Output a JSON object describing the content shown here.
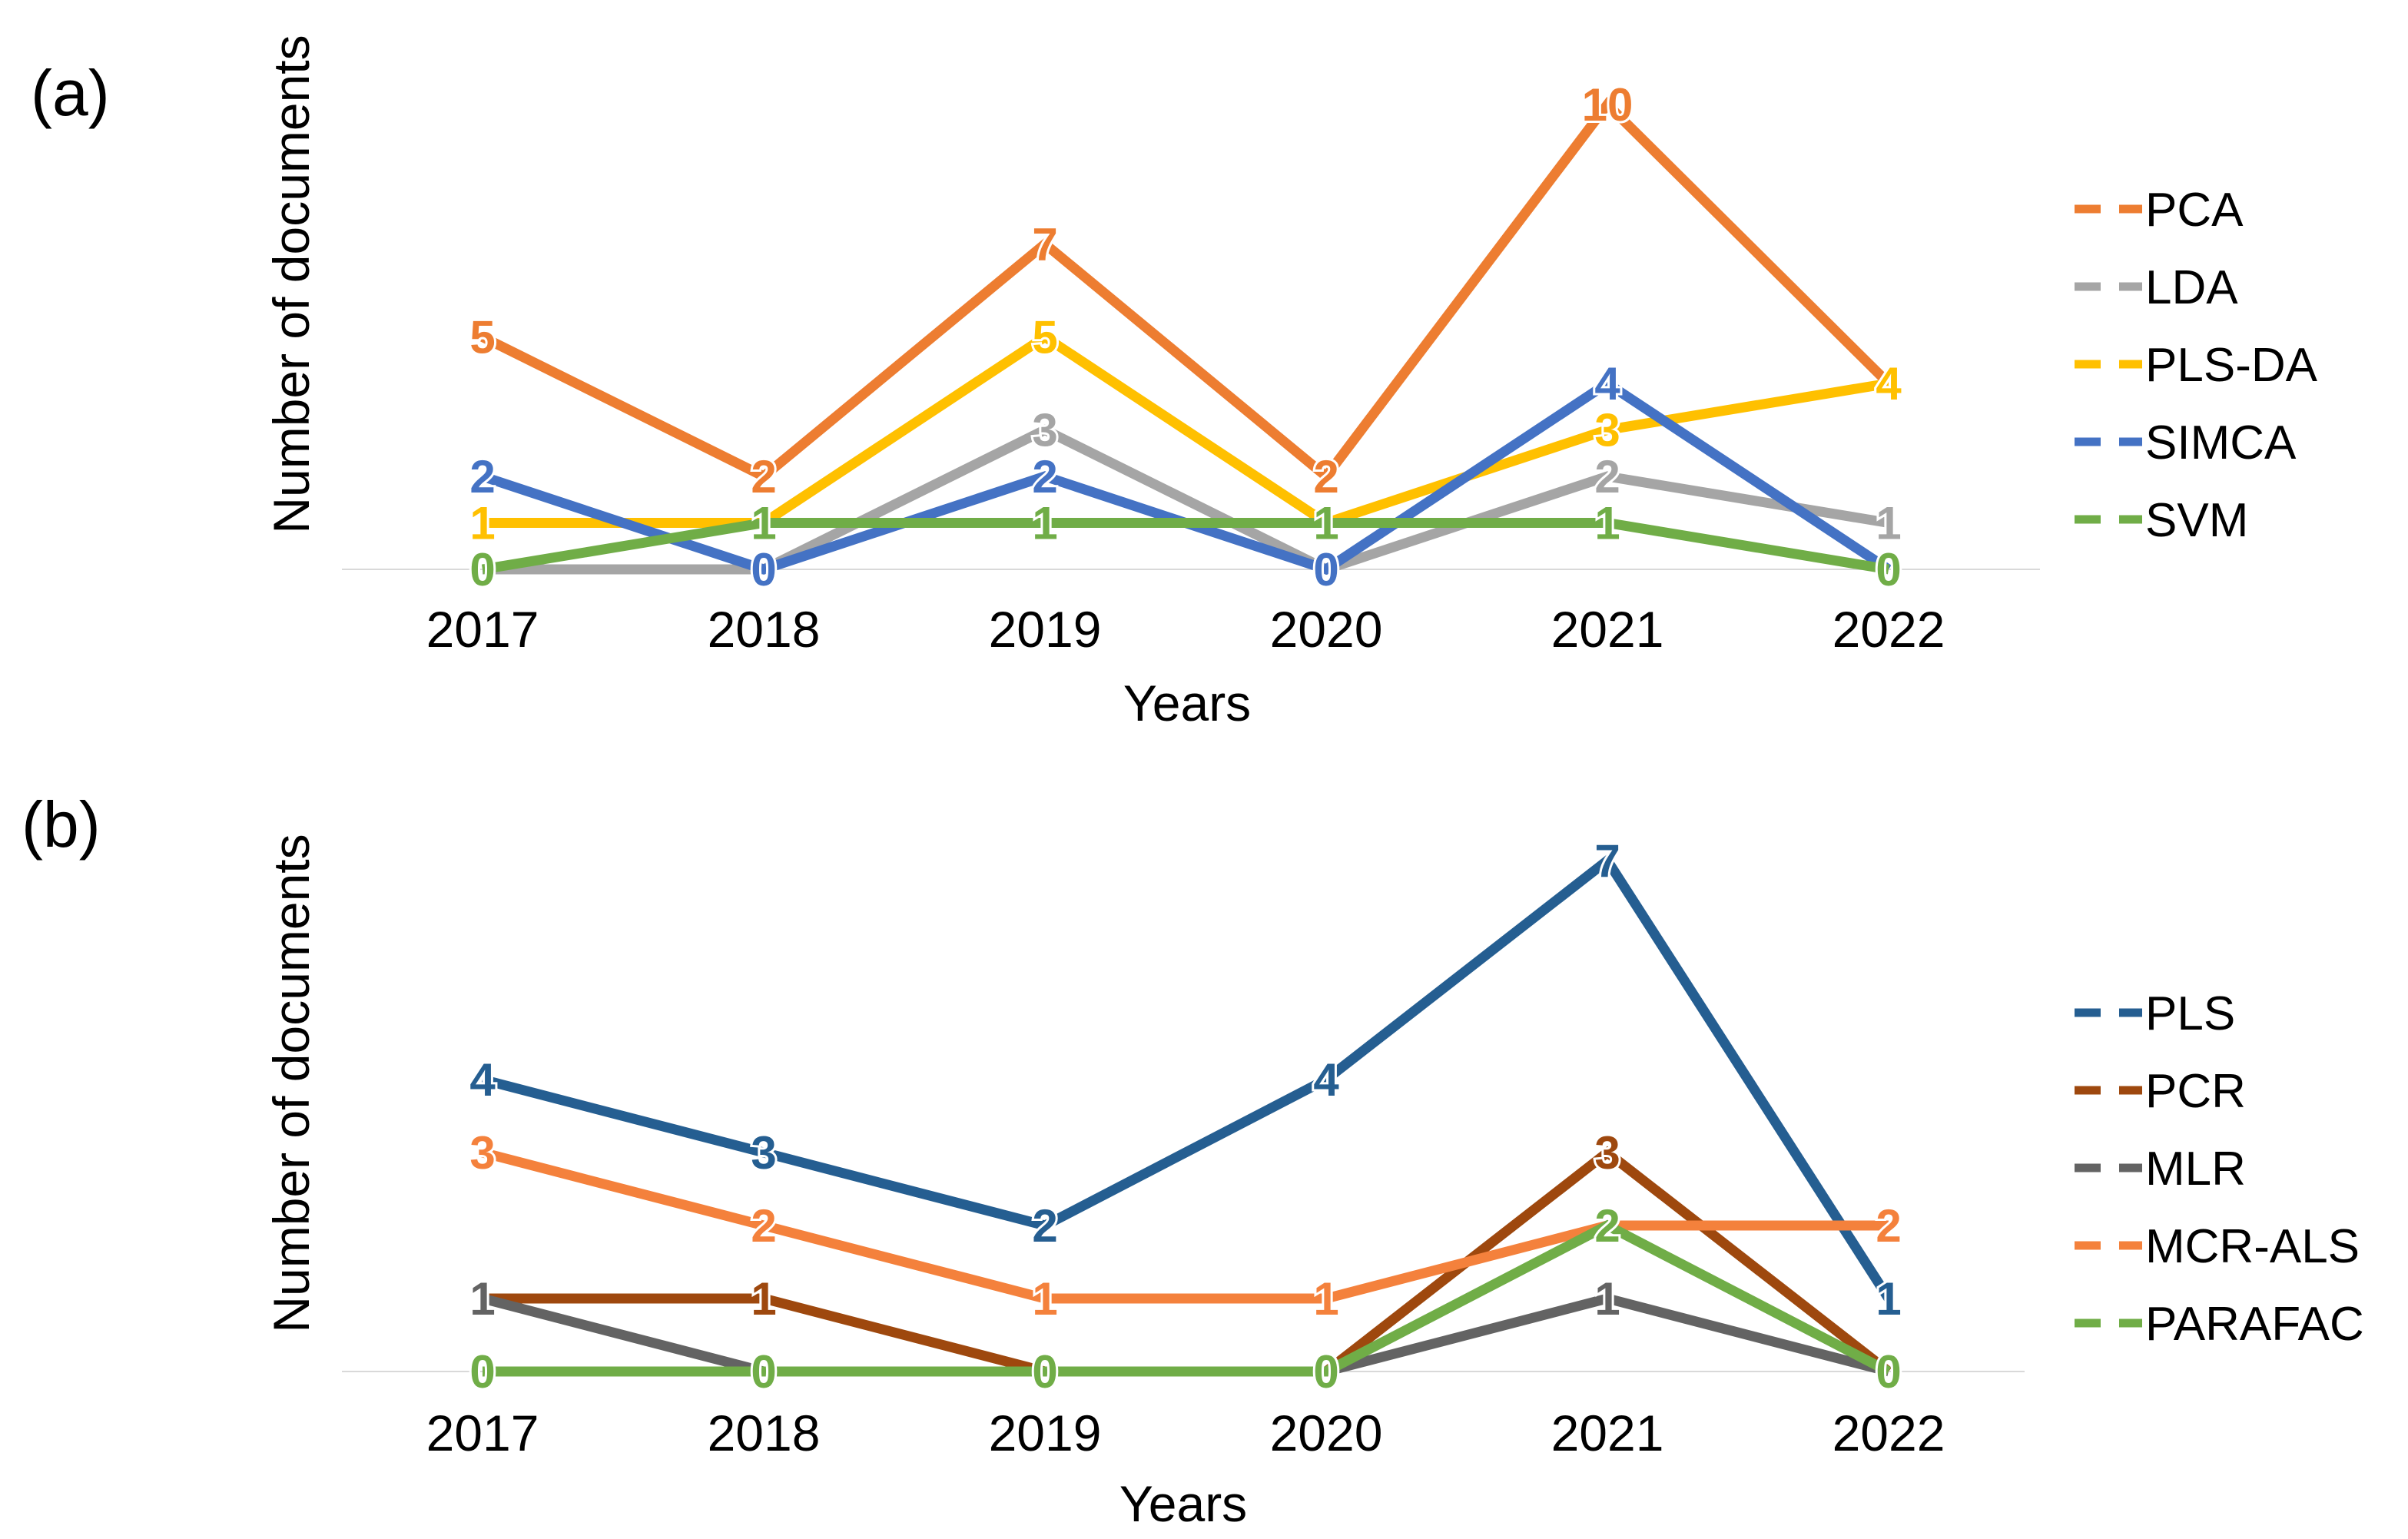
{
  "chart_data": [
    {
      "type": "line",
      "panel_label": "(a)",
      "xlabel": "Years",
      "ylabel": "Number of documents",
      "categories": [
        "2017",
        "2018",
        "2019",
        "2020",
        "2021",
        "2022"
      ],
      "ylim": [
        0,
        10
      ],
      "grid": false,
      "legend_position": "right",
      "series": [
        {
          "name": "PCA",
          "color": "#ED7D31",
          "values": [
            5,
            2,
            7,
            2,
            10,
            4
          ]
        },
        {
          "name": "LDA",
          "color": "#A5A5A5",
          "values": [
            0,
            0,
            3,
            0,
            2,
            1
          ]
        },
        {
          "name": "PLS-DA",
          "color": "#FFC000",
          "values": [
            1,
            1,
            5,
            1,
            3,
            4
          ]
        },
        {
          "name": "SIMCA",
          "color": "#4472C4",
          "values": [
            2,
            0,
            2,
            0,
            4,
            0
          ]
        },
        {
          "name": "SVM",
          "color": "#70AD47",
          "values": [
            0,
            1,
            1,
            1,
            1,
            0
          ]
        }
      ],
      "data_labels": [
        {
          "series": "PCA",
          "index": 0,
          "text": "5"
        },
        {
          "series": "PCA",
          "index": 1,
          "text": "2"
        },
        {
          "series": "PCA",
          "index": 2,
          "text": "7"
        },
        {
          "series": "PCA",
          "index": 3,
          "text": "2"
        },
        {
          "series": "PCA",
          "index": 4,
          "text": "10"
        },
        {
          "series": "PCA",
          "index": 5,
          "text": "4"
        },
        {
          "series": "LDA",
          "index": 2,
          "text": "3"
        },
        {
          "series": "LDA",
          "index": 4,
          "text": "2"
        },
        {
          "series": "LDA",
          "index": 5,
          "text": "1"
        },
        {
          "series": "PLS-DA",
          "index": 0,
          "text": "1"
        },
        {
          "series": "PLS-DA",
          "index": 2,
          "text": "5"
        },
        {
          "series": "PLS-DA",
          "index": 4,
          "text": "3"
        },
        {
          "series": "PLS-DA",
          "index": 5,
          "text": "4"
        },
        {
          "series": "SIMCA",
          "index": 0,
          "text": "2"
        },
        {
          "series": "SIMCA",
          "index": 1,
          "text": "0"
        },
        {
          "series": "SIMCA",
          "index": 2,
          "text": "2"
        },
        {
          "series": "SIMCA",
          "index": 3,
          "text": "0"
        },
        {
          "series": "SIMCA",
          "index": 4,
          "text": "4"
        },
        {
          "series": "SVM",
          "index": 0,
          "text": "0"
        },
        {
          "series": "SVM",
          "index": 1,
          "text": "1"
        },
        {
          "series": "SVM",
          "index": 2,
          "text": "1"
        },
        {
          "series": "SVM",
          "index": 3,
          "text": "1"
        },
        {
          "series": "SVM",
          "index": 4,
          "text": "1"
        },
        {
          "series": "SVM",
          "index": 5,
          "text": "0"
        }
      ]
    },
    {
      "type": "line",
      "panel_label": "(b)",
      "xlabel": "Years",
      "ylabel": "Number of documents",
      "categories": [
        "2017",
        "2018",
        "2019",
        "2020",
        "2021",
        "2022"
      ],
      "ylim": [
        0,
        7
      ],
      "grid": false,
      "legend_position": "right",
      "series": [
        {
          "name": "PLS",
          "color": "#255E91",
          "values": [
            4,
            3,
            2,
            4,
            7,
            1
          ]
        },
        {
          "name": "PCR",
          "color": "#9E480E",
          "values": [
            1,
            1,
            0,
            0,
            3,
            0
          ]
        },
        {
          "name": "MLR",
          "color": "#636363",
          "values": [
            1,
            0,
            0,
            0,
            1,
            0
          ]
        },
        {
          "name": "MCR-ALS",
          "color": "#F4813C",
          "values": [
            3,
            2,
            1,
            1,
            2,
            2
          ]
        },
        {
          "name": "PARAFAC",
          "color": "#70AD47",
          "values": [
            0,
            0,
            0,
            0,
            2,
            0
          ]
        }
      ],
      "data_labels": [
        {
          "series": "PLS",
          "index": 0,
          "text": "4"
        },
        {
          "series": "PLS",
          "index": 1,
          "text": "3"
        },
        {
          "series": "PLS",
          "index": 2,
          "text": "2"
        },
        {
          "series": "PLS",
          "index": 3,
          "text": "4"
        },
        {
          "series": "PLS",
          "index": 4,
          "text": "7"
        },
        {
          "series": "PLS",
          "index": 5,
          "text": "1"
        },
        {
          "series": "PCR",
          "index": 1,
          "text": "1"
        },
        {
          "series": "PCR",
          "index": 4,
          "text": "3"
        },
        {
          "series": "MLR",
          "index": 0,
          "text": "1"
        },
        {
          "series": "MLR",
          "index": 4,
          "text": "1"
        },
        {
          "series": "MCR-ALS",
          "index": 0,
          "text": "3"
        },
        {
          "series": "MCR-ALS",
          "index": 1,
          "text": "2"
        },
        {
          "series": "MCR-ALS",
          "index": 2,
          "text": "1"
        },
        {
          "series": "MCR-ALS",
          "index": 3,
          "text": "1"
        },
        {
          "series": "MCR-ALS",
          "index": 5,
          "text": "2"
        },
        {
          "series": "PARAFAC",
          "index": 0,
          "text": "0"
        },
        {
          "series": "PARAFAC",
          "index": 1,
          "text": "0"
        },
        {
          "series": "PARAFAC",
          "index": 2,
          "text": "0"
        },
        {
          "series": "PARAFAC",
          "index": 3,
          "text": "0"
        },
        {
          "series": "PARAFAC",
          "index": 4,
          "text": "2"
        },
        {
          "series": "PARAFAC",
          "index": 5,
          "text": "0"
        }
      ]
    }
  ]
}
